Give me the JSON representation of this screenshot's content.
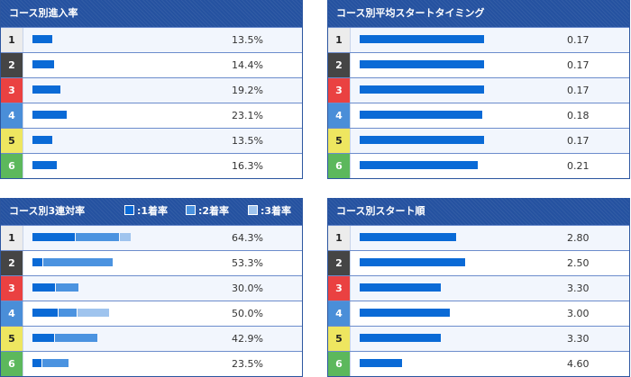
{
  "colors": {
    "bar": "#0a6ad6",
    "bar2": "#4b93e0",
    "bar3": "#9fc4ee"
  },
  "lanes": [
    {
      "n": "1",
      "bg": "#ececec",
      "fg": "#222"
    },
    {
      "n": "2",
      "bg": "#454545",
      "fg": "#fff"
    },
    {
      "n": "3",
      "bg": "#ea4141",
      "fg": "#fff"
    },
    {
      "n": "4",
      "bg": "#4a8ed8",
      "fg": "#fff"
    },
    {
      "n": "5",
      "bg": "#eee660",
      "fg": "#222"
    },
    {
      "n": "6",
      "bg": "#5cb85c",
      "fg": "#fff"
    }
  ],
  "entry": {
    "title": "コース別進入率",
    "values": [
      13.5,
      14.4,
      19.2,
      23.1,
      13.5,
      16.3
    ],
    "labels": [
      "13.5%",
      "14.4%",
      "19.2%",
      "23.1%",
      "13.5%",
      "16.3%"
    ]
  },
  "timing": {
    "title": "コース別平均スタートタイミング",
    "values": [
      0.17,
      0.17,
      0.17,
      0.18,
      0.17,
      0.21
    ],
    "labels": [
      "0.17",
      "0.17",
      "0.17",
      "0.18",
      "0.17",
      "0.21"
    ]
  },
  "trio": {
    "title": "コース別3連対率",
    "legend": [
      ":1着率",
      ":2着率",
      ":3着率"
    ],
    "segments": [
      [
        28.6,
        28.6,
        7.1
      ],
      [
        6.7,
        46.6,
        0
      ],
      [
        15.0,
        15.0,
        0
      ],
      [
        16.7,
        12.5,
        20.8
      ],
      [
        14.3,
        28.6,
        0
      ],
      [
        5.9,
        17.6,
        0
      ]
    ],
    "labels": [
      "64.3%",
      "53.3%",
      "30.0%",
      "50.0%",
      "42.9%",
      "23.5%"
    ]
  },
  "order": {
    "title": "コース別スタート順",
    "values": [
      2.8,
      2.5,
      3.3,
      3.0,
      3.3,
      4.6
    ],
    "labels": [
      "2.80",
      "2.50",
      "3.30",
      "3.00",
      "3.30",
      "4.60"
    ]
  }
}
